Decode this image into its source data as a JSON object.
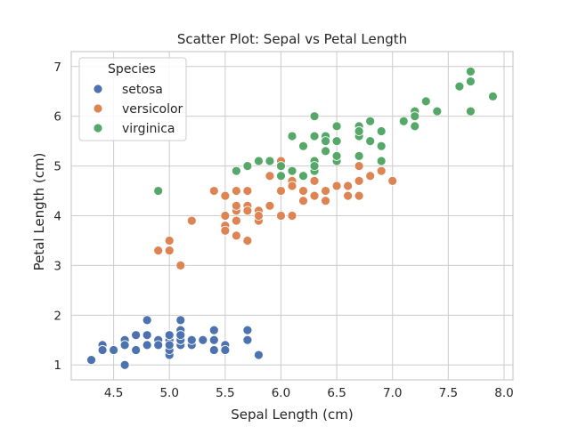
{
  "chart_data": {
    "type": "scatter",
    "title": "Scatter Plot: Sepal vs Petal Length",
    "xlabel": "Sepal Length (cm)",
    "ylabel": "Petal Length (cm)",
    "xlim": [
      4.12,
      8.08
    ],
    "ylim": [
      0.7,
      7.3
    ],
    "xticks": [
      "4.5",
      "5.0",
      "5.5",
      "6.0",
      "6.5",
      "7.0",
      "7.5",
      "8.0"
    ],
    "yticks": [
      "1",
      "2",
      "3",
      "4",
      "5",
      "6",
      "7"
    ],
    "grid": true,
    "legend": {
      "title": "Species",
      "position": "top-left"
    },
    "series": [
      {
        "name": "setosa",
        "color": "#4c72b0",
        "points": [
          [
            5.1,
            1.4
          ],
          [
            4.9,
            1.4
          ],
          [
            4.7,
            1.3
          ],
          [
            4.6,
            1.5
          ],
          [
            5.0,
            1.4
          ],
          [
            5.4,
            1.7
          ],
          [
            4.6,
            1.4
          ],
          [
            5.0,
            1.5
          ],
          [
            4.4,
            1.4
          ],
          [
            4.9,
            1.5
          ],
          [
            5.4,
            1.5
          ],
          [
            4.8,
            1.6
          ],
          [
            4.8,
            1.4
          ],
          [
            4.3,
            1.1
          ],
          [
            5.8,
            1.2
          ],
          [
            5.7,
            1.5
          ],
          [
            5.4,
            1.3
          ],
          [
            5.1,
            1.4
          ],
          [
            5.7,
            1.7
          ],
          [
            5.1,
            1.5
          ],
          [
            5.4,
            1.7
          ],
          [
            5.1,
            1.5
          ],
          [
            4.6,
            1.0
          ],
          [
            5.1,
            1.7
          ],
          [
            4.8,
            1.9
          ],
          [
            5.0,
            1.6
          ],
          [
            5.0,
            1.6
          ],
          [
            5.2,
            1.5
          ],
          [
            5.2,
            1.4
          ],
          [
            4.7,
            1.6
          ],
          [
            4.8,
            1.6
          ],
          [
            5.4,
            1.5
          ],
          [
            5.2,
            1.5
          ],
          [
            5.5,
            1.4
          ],
          [
            4.9,
            1.5
          ],
          [
            5.0,
            1.2
          ],
          [
            5.5,
            1.3
          ],
          [
            4.9,
            1.4
          ],
          [
            4.4,
            1.3
          ],
          [
            5.1,
            1.5
          ],
          [
            5.0,
            1.3
          ],
          [
            4.5,
            1.3
          ],
          [
            4.4,
            1.3
          ],
          [
            5.0,
            1.6
          ],
          [
            5.1,
            1.9
          ],
          [
            4.8,
            1.4
          ],
          [
            5.1,
            1.6
          ],
          [
            4.6,
            1.4
          ],
          [
            5.3,
            1.5
          ],
          [
            5.0,
            1.4
          ]
        ]
      },
      {
        "name": "versicolor",
        "color": "#dd8452",
        "points": [
          [
            7.0,
            4.7
          ],
          [
            6.4,
            4.5
          ],
          [
            6.9,
            4.9
          ],
          [
            5.5,
            4.0
          ],
          [
            6.5,
            4.6
          ],
          [
            5.7,
            4.5
          ],
          [
            6.3,
            4.7
          ],
          [
            4.9,
            3.3
          ],
          [
            6.6,
            4.6
          ],
          [
            5.2,
            3.9
          ],
          [
            5.0,
            3.5
          ],
          [
            5.9,
            4.2
          ],
          [
            6.0,
            4.0
          ],
          [
            6.1,
            4.7
          ],
          [
            5.6,
            3.6
          ],
          [
            6.7,
            4.4
          ],
          [
            5.6,
            4.5
          ],
          [
            5.8,
            4.1
          ],
          [
            6.2,
            4.5
          ],
          [
            5.6,
            3.9
          ],
          [
            5.9,
            4.8
          ],
          [
            6.1,
            4.0
          ],
          [
            6.3,
            4.9
          ],
          [
            6.1,
            4.7
          ],
          [
            6.4,
            4.3
          ],
          [
            6.6,
            4.4
          ],
          [
            6.8,
            4.8
          ],
          [
            6.7,
            5.0
          ],
          [
            6.0,
            4.5
          ],
          [
            5.7,
            3.5
          ],
          [
            5.5,
            3.8
          ],
          [
            5.5,
            3.7
          ],
          [
            5.8,
            3.9
          ],
          [
            6.0,
            5.1
          ],
          [
            5.4,
            4.5
          ],
          [
            6.0,
            4.5
          ],
          [
            6.7,
            4.7
          ],
          [
            6.3,
            4.4
          ],
          [
            5.6,
            4.1
          ],
          [
            5.5,
            4.0
          ],
          [
            5.5,
            4.4
          ],
          [
            6.1,
            4.6
          ],
          [
            5.8,
            4.0
          ],
          [
            5.0,
            3.3
          ],
          [
            5.6,
            4.2
          ],
          [
            5.7,
            4.2
          ],
          [
            5.7,
            4.2
          ],
          [
            6.2,
            4.3
          ],
          [
            5.1,
            3.0
          ],
          [
            5.7,
            4.1
          ]
        ]
      },
      {
        "name": "virginica",
        "color": "#55a868",
        "points": [
          [
            6.3,
            6.0
          ],
          [
            5.8,
            5.1
          ],
          [
            7.1,
            5.9
          ],
          [
            6.3,
            5.6
          ],
          [
            6.5,
            5.8
          ],
          [
            7.6,
            6.6
          ],
          [
            4.9,
            4.5
          ],
          [
            7.3,
            6.3
          ],
          [
            6.7,
            5.8
          ],
          [
            7.2,
            6.1
          ],
          [
            6.5,
            5.1
          ],
          [
            6.4,
            5.3
          ],
          [
            6.8,
            5.5
          ],
          [
            5.7,
            5.0
          ],
          [
            5.8,
            5.1
          ],
          [
            6.4,
            5.3
          ],
          [
            6.5,
            5.5
          ],
          [
            7.7,
            6.7
          ],
          [
            7.7,
            6.9
          ],
          [
            6.0,
            5.0
          ],
          [
            6.9,
            5.7
          ],
          [
            5.6,
            4.9
          ],
          [
            7.7,
            6.7
          ],
          [
            6.3,
            4.9
          ],
          [
            6.7,
            5.7
          ],
          [
            7.2,
            6.0
          ],
          [
            6.2,
            4.8
          ],
          [
            6.1,
            4.9
          ],
          [
            6.4,
            5.6
          ],
          [
            7.2,
            5.8
          ],
          [
            7.4,
            6.1
          ],
          [
            7.9,
            6.4
          ],
          [
            6.4,
            5.6
          ],
          [
            6.3,
            5.1
          ],
          [
            6.1,
            5.6
          ],
          [
            7.7,
            6.1
          ],
          [
            6.3,
            5.6
          ],
          [
            6.4,
            5.5
          ],
          [
            6.0,
            4.8
          ],
          [
            6.9,
            5.4
          ],
          [
            6.7,
            5.6
          ],
          [
            6.9,
            5.1
          ],
          [
            5.8,
            5.1
          ],
          [
            6.8,
            5.9
          ],
          [
            6.7,
            5.7
          ],
          [
            6.7,
            5.2
          ],
          [
            6.3,
            5.0
          ],
          [
            6.5,
            5.2
          ],
          [
            6.2,
            5.4
          ],
          [
            5.9,
            5.1
          ]
        ]
      }
    ]
  }
}
